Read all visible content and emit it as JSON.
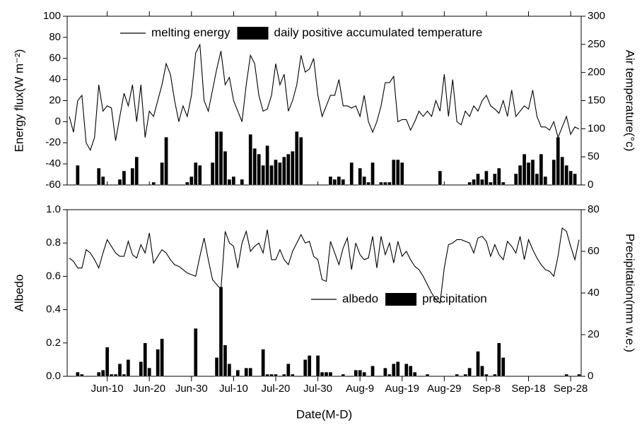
{
  "chart_data": [
    {
      "type": "combo",
      "ylabel": "Energy flux(W m⁻²)",
      "y2label": "Air temperature(°c)",
      "ylim": [
        -60,
        100
      ],
      "yticks": [
        -60,
        -40,
        -20,
        0,
        20,
        40,
        60,
        80,
        100
      ],
      "y2lim": [
        0,
        300
      ],
      "y2ticks": [
        0,
        50,
        100,
        150,
        200,
        250,
        300
      ],
      "series": [
        {
          "name": "melting energy",
          "type": "line",
          "color": "#000000",
          "values": [
            5,
            -10,
            20,
            25,
            -20,
            -27,
            -15,
            35,
            10,
            15,
            13,
            -18,
            5,
            27,
            15,
            35,
            0,
            35,
            -15,
            10,
            5,
            20,
            35,
            55,
            45,
            20,
            0,
            15,
            5,
            25,
            65,
            73,
            20,
            10,
            30,
            50,
            67,
            35,
            42,
            20,
            10,
            0,
            35,
            63,
            55,
            25,
            10,
            12,
            25,
            55,
            35,
            45,
            10,
            20,
            35,
            63,
            47,
            50,
            60,
            25,
            5,
            15,
            25,
            25,
            40,
            15,
            15,
            13,
            15,
            5,
            25,
            0,
            -10,
            0,
            15,
            37,
            37,
            43,
            0,
            2,
            2,
            -8,
            0,
            10,
            5,
            10,
            5,
            20,
            10,
            45,
            5,
            40,
            0,
            -3,
            10,
            5,
            15,
            10,
            20,
            25,
            15,
            12,
            8,
            20,
            5,
            30,
            5,
            10,
            15,
            12,
            30,
            5,
            -5,
            -5,
            -8,
            0,
            -15,
            -5,
            5,
            -12,
            -5,
            -7
          ]
        },
        {
          "name": "daily positive accumulated temperature",
          "type": "bar",
          "axis": "y2",
          "color": "#000000",
          "values": [
            0,
            0,
            35,
            0,
            0,
            0,
            0,
            30,
            15,
            0,
            0,
            0,
            10,
            25,
            0,
            30,
            50,
            0,
            0,
            0,
            5,
            0,
            40,
            85,
            0,
            0,
            0,
            0,
            5,
            15,
            40,
            35,
            0,
            0,
            40,
            95,
            95,
            60,
            10,
            15,
            0,
            10,
            0,
            90,
            65,
            55,
            35,
            70,
            35,
            45,
            40,
            50,
            55,
            60,
            95,
            85,
            0,
            0,
            0,
            0,
            0,
            0,
            15,
            10,
            15,
            10,
            0,
            40,
            0,
            30,
            15,
            5,
            40,
            0,
            5,
            5,
            5,
            45,
            45,
            40,
            0,
            0,
            0,
            0,
            0,
            0,
            0,
            0,
            25,
            0,
            0,
            0,
            0,
            0,
            0,
            5,
            10,
            20,
            10,
            25,
            5,
            20,
            30,
            5,
            0,
            0,
            20,
            35,
            55,
            40,
            45,
            20,
            55,
            15,
            0,
            45,
            85,
            50,
            35,
            25,
            20,
            0
          ]
        }
      ]
    },
    {
      "type": "combo",
      "ylabel": "Albedo",
      "y2label": "Precipitation(mm w.e.)",
      "xlabel": "Date(M-D)",
      "categories": [
        null,
        null,
        null,
        null,
        null,
        null,
        null,
        null,
        null,
        "Jun-10",
        null,
        null,
        null,
        null,
        null,
        null,
        null,
        null,
        null,
        "Jun-20",
        null,
        null,
        null,
        null,
        null,
        null,
        null,
        null,
        null,
        "Jun-30",
        null,
        null,
        null,
        null,
        null,
        null,
        null,
        null,
        null,
        "Jul-10",
        null,
        null,
        null,
        null,
        null,
        null,
        null,
        null,
        null,
        "Jul-20",
        null,
        null,
        null,
        null,
        null,
        null,
        null,
        null,
        null,
        "Jul-30",
        null,
        null,
        null,
        null,
        null,
        null,
        null,
        null,
        null,
        "Aug-9",
        null,
        null,
        null,
        null,
        null,
        null,
        null,
        null,
        null,
        "Aug-19",
        null,
        null,
        null,
        null,
        null,
        null,
        null,
        null,
        null,
        "Aug-29",
        null,
        null,
        null,
        null,
        null,
        null,
        null,
        null,
        null,
        "Sep-8",
        null,
        null,
        null,
        null,
        null,
        null,
        null,
        null,
        null,
        "Sep-18",
        null,
        null,
        null,
        null,
        null,
        null,
        null,
        null,
        null,
        "Sep-28",
        null,
        null
      ],
      "ylim": [
        0,
        1
      ],
      "yticks": [
        {
          "value": 0,
          "label": "0.0"
        },
        0.2,
        0.4,
        0.6,
        0.8,
        {
          "value": 1,
          "label": "1.0"
        }
      ],
      "y2lim": [
        0,
        80
      ],
      "y2ticks": [
        0,
        20,
        40,
        60,
        80
      ],
      "series": [
        {
          "name": "albedo",
          "type": "line",
          "color": "#000000",
          "values": [
            0.71,
            0.69,
            0.65,
            0.65,
            0.76,
            0.74,
            0.7,
            0.65,
            0.74,
            0.82,
            0.78,
            0.74,
            0.72,
            0.72,
            0.81,
            0.73,
            0.71,
            0.79,
            0.74,
            0.86,
            0.68,
            0.72,
            0.76,
            0.74,
            0.7,
            0.67,
            0.66,
            0.64,
            0.62,
            0.61,
            0.6,
            0.72,
            0.83,
            0.7,
            0.58,
            0.55,
            0.52,
            0.87,
            0.8,
            0.78,
            0.65,
            0.8,
            0.87,
            0.75,
            0.78,
            0.8,
            0.74,
            0.88,
            0.7,
            0.7,
            0.76,
            0.7,
            0.67,
            0.75,
            0.8,
            0.85,
            0.8,
            0.81,
            0.72,
            0.7,
            0.58,
            0.57,
            0.81,
            0.74,
            0.67,
            0.77,
            0.83,
            0.64,
            0.8,
            0.73,
            0.7,
            0.71,
            0.84,
            0.65,
            0.84,
            0.73,
            0.8,
            0.68,
            0.81,
            0.72,
            0.75,
            0.7,
            0.66,
            0.64,
            0.6,
            0.55,
            0.5,
            0.46,
            0.44,
            0.65,
            0.79,
            0.8,
            0.82,
            0.82,
            0.81,
            0.8,
            0.74,
            0.83,
            0.84,
            0.81,
            0.72,
            0.79,
            0.73,
            0.7,
            0.81,
            0.78,
            0.74,
            0.84,
            0.7,
            0.82,
            0.76,
            0.71,
            0.67,
            0.64,
            0.63,
            0.6,
            0.72,
            0.89,
            0.87,
            0.78,
            0.7,
            0.82
          ]
        },
        {
          "name": "precipitation",
          "type": "bar",
          "axis": "y2",
          "color": "#000000",
          "values": [
            0,
            0,
            2,
            1,
            0,
            0,
            0,
            2,
            3,
            14,
            1,
            1,
            6,
            1,
            8,
            0,
            0,
            7,
            16,
            4,
            0,
            13,
            18,
            0,
            0,
            0,
            0,
            0,
            0,
            0,
            23,
            0,
            0,
            0,
            0,
            9,
            43,
            15,
            6,
            0,
            3,
            0,
            4,
            4,
            0,
            0,
            13,
            1,
            1,
            1,
            0,
            1,
            6,
            1,
            0,
            0,
            8,
            10,
            0,
            10,
            2,
            2,
            2,
            0,
            0,
            1,
            0,
            0,
            3,
            3,
            2,
            0,
            5,
            0,
            0,
            4,
            1,
            6,
            7,
            0,
            6,
            5,
            2,
            0,
            0,
            1,
            0,
            0,
            0,
            0,
            0,
            0,
            1,
            0,
            1,
            4,
            0,
            12,
            5,
            1,
            0,
            1,
            16,
            9,
            0,
            0,
            0,
            0,
            0,
            0,
            0,
            0,
            0,
            0,
            0,
            0,
            0,
            0,
            1,
            0,
            0,
            1
          ]
        }
      ]
    }
  ]
}
